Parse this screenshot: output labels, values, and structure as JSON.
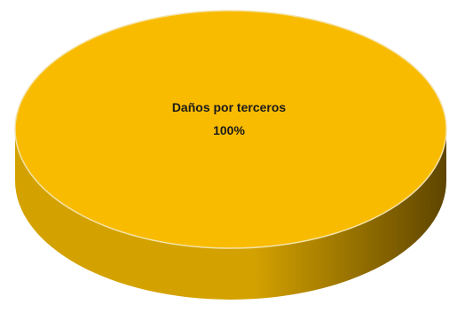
{
  "chart_data": {
    "type": "pie",
    "style": "3d",
    "title": "",
    "slices": [
      {
        "label": "Daños por terceros",
        "value": 100,
        "percent_label": "100%",
        "color": "#F9BB00",
        "side_color_light": "#D4A200",
        "side_color_dark": "#5E4500"
      }
    ]
  }
}
